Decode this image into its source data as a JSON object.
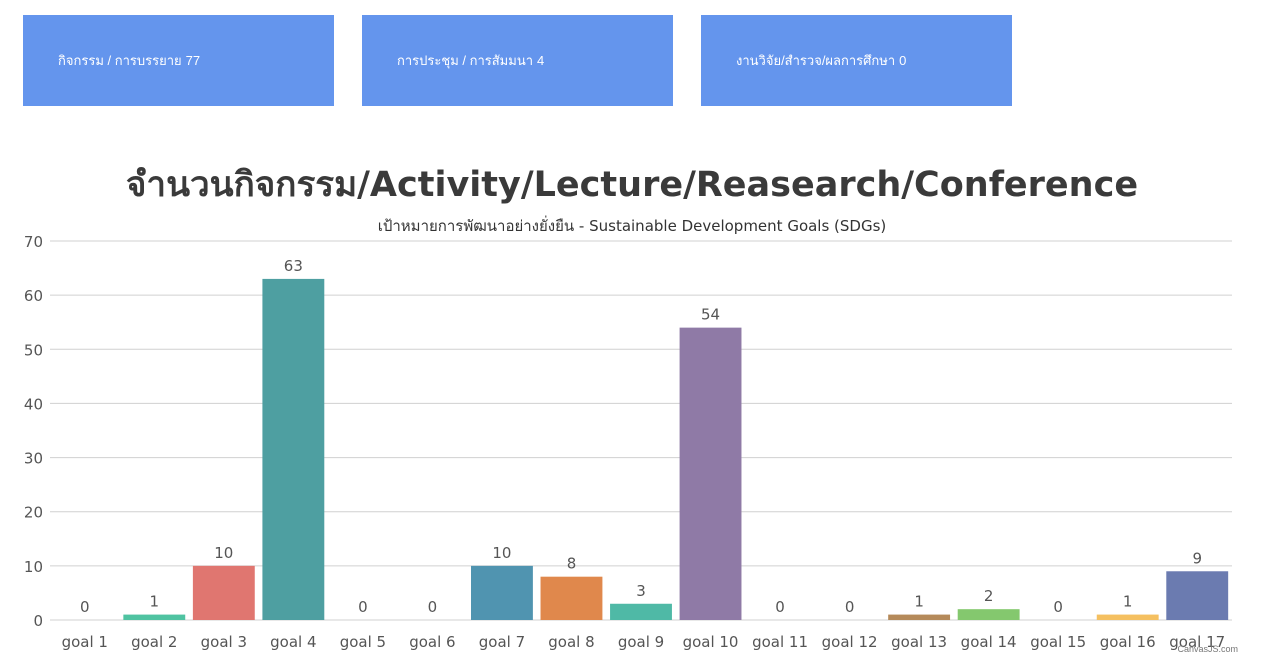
{
  "stats": [
    {
      "label": "กิจกรรม / การบรรยาย",
      "count": "77"
    },
    {
      "label": "การประชุม / การสัมมนา",
      "count": "4"
    },
    {
      "label": "งานวิจัย/สำรวจ/ผลการศึกษา",
      "count": "0"
    }
  ],
  "colors": {
    "card_bg": "#6495ed",
    "grid": "#d0d0d0",
    "axis_text": "#555555",
    "title_text": "#3a3a3a"
  },
  "watermark": "CanvasJS.com",
  "chart_data": {
    "type": "bar",
    "title": "จำนวนกิจกรรม/Activity/Lecture/Reasearch/Conference",
    "subtitle": "เป้าหมายการพัฒนาอย่างยั่งยืน - Sustainable Development Goals (SDGs)",
    "categories": [
      "goal 1",
      "goal 2",
      "goal 3",
      "goal 4",
      "goal 5",
      "goal 6",
      "goal 7",
      "goal 8",
      "goal 9",
      "goal 10",
      "goal 11",
      "goal 12",
      "goal 13",
      "goal 14",
      "goal 15",
      "goal 16",
      "goal 17"
    ],
    "values": [
      0,
      1,
      10,
      63,
      0,
      0,
      10,
      8,
      3,
      54,
      0,
      0,
      1,
      2,
      0,
      1,
      9
    ],
    "bar_colors": [
      "#3a7bbf",
      "#4fc3a1",
      "#e07670",
      "#4e9fa1",
      "#7a6aa8",
      "#6a8fcc",
      "#5094b0",
      "#e0884c",
      "#4fb9a6",
      "#8f7aa6",
      "#5a9fc2",
      "#7e9a8a",
      "#b58a5a",
      "#84c86e",
      "#88aacc",
      "#f5c060",
      "#6b7bb0"
    ],
    "ylim": [
      0,
      70
    ],
    "yticks": [
      0,
      10,
      20,
      30,
      40,
      50,
      60,
      70
    ],
    "grid": true,
    "data_labels": true
  }
}
